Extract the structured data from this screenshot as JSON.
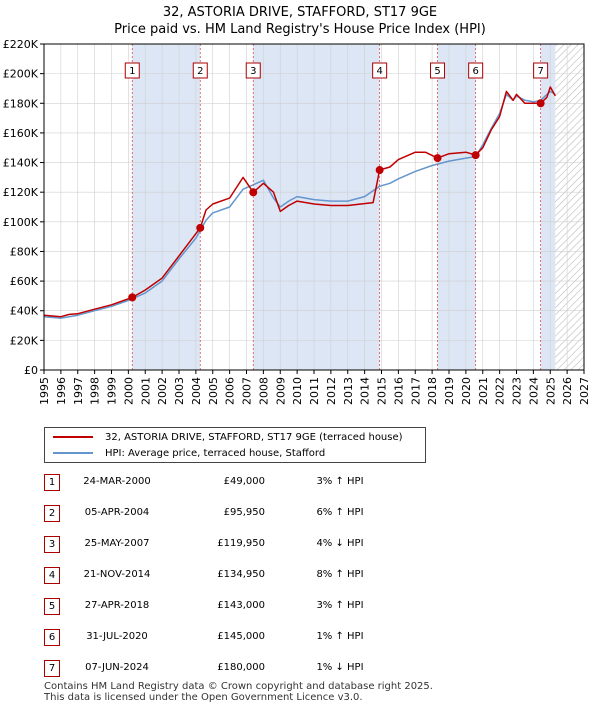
{
  "title": {
    "line1": "32, ASTORIA DRIVE, STAFFORD, ST17 9GE",
    "line2": "Price paid vs. HM Land Registry's House Price Index (HPI)"
  },
  "colors": {
    "property": "#c00000",
    "hpi": "#6495cd",
    "shade": "#dce6f5",
    "marker_line": "#e05050",
    "axis": "#000000",
    "grid": "#d0d0d0"
  },
  "legend": {
    "property_label": "32, ASTORIA DRIVE, STAFFORD, ST17 9GE (terraced house)",
    "hpi_label": "HPI: Average price, terraced house, Stafford"
  },
  "sales": [
    {
      "num": "1",
      "date": "24-MAR-2000",
      "price": "£49,000",
      "hpi": "3% ↑ HPI"
    },
    {
      "num": "2",
      "date": "05-APR-2004",
      "price": "£95,950",
      "hpi": "6% ↑ HPI"
    },
    {
      "num": "3",
      "date": "25-MAY-2007",
      "price": "£119,950",
      "hpi": "4% ↓ HPI"
    },
    {
      "num": "4",
      "date": "21-NOV-2014",
      "price": "£134,950",
      "hpi": "8% ↑ HPI"
    },
    {
      "num": "5",
      "date": "27-APR-2018",
      "price": "£143,000",
      "hpi": "3% ↑ HPI"
    },
    {
      "num": "6",
      "date": "31-JUL-2020",
      "price": "£145,000",
      "hpi": "1% ↑ HPI"
    },
    {
      "num": "7",
      "date": "07-JUN-2024",
      "price": "£180,000",
      "hpi": "1% ↓ HPI"
    }
  ],
  "footer": {
    "line1": "Contains HM Land Registry data © Crown copyright and database right 2025.",
    "line2": "This data is licensed under the Open Government Licence v3.0."
  },
  "chart_data": {
    "type": "line",
    "title": "Price paid vs. HM Land Registry's House Price Index (HPI)",
    "xlabel": "",
    "ylabel": "",
    "xlim": [
      1995,
      2027
    ],
    "ylim": [
      0,
      220000
    ],
    "x_ticks": [
      1995,
      1996,
      1997,
      1998,
      1999,
      2000,
      2001,
      2002,
      2003,
      2004,
      2005,
      2006,
      2007,
      2008,
      2009,
      2010,
      2011,
      2012,
      2013,
      2014,
      2015,
      2016,
      2017,
      2018,
      2019,
      2020,
      2021,
      2022,
      2023,
      2024,
      2025,
      2026,
      2027
    ],
    "y_ticks": [
      {
        "value": 0,
        "label": "£0"
      },
      {
        "value": 20000,
        "label": "£20K"
      },
      {
        "value": 40000,
        "label": "£40K"
      },
      {
        "value": 60000,
        "label": "£60K"
      },
      {
        "value": 80000,
        "label": "£80K"
      },
      {
        "value": 100000,
        "label": "£100K"
      },
      {
        "value": 120000,
        "label": "£120K"
      },
      {
        "value": 140000,
        "label": "£140K"
      },
      {
        "value": 160000,
        "label": "£160K"
      },
      {
        "value": 180000,
        "label": "£180K"
      },
      {
        "value": 200000,
        "label": "£200K"
      },
      {
        "value": 220000,
        "label": "£220K"
      }
    ],
    "shaded_ranges": [
      [
        2000.23,
        2004.26
      ],
      [
        2007.4,
        2014.89
      ],
      [
        2018.32,
        2020.58
      ],
      [
        2024.43,
        2025.3
      ]
    ],
    "forecast_start": 2025.3,
    "sale_markers": [
      {
        "num": "1",
        "x": 2000.23,
        "y": 49000
      },
      {
        "num": "2",
        "x": 2004.26,
        "y": 95950
      },
      {
        "num": "3",
        "x": 2007.4,
        "y": 119950
      },
      {
        "num": "4",
        "x": 2014.89,
        "y": 134950
      },
      {
        "num": "5",
        "x": 2018.32,
        "y": 143000
      },
      {
        "num": "6",
        "x": 2020.58,
        "y": 145000
      },
      {
        "num": "7",
        "x": 2024.43,
        "y": 180000
      }
    ],
    "series": [
      {
        "name": "32, ASTORIA DRIVE, STAFFORD, ST17 9GE (terraced house)",
        "color": "#c00000",
        "points": [
          [
            1995,
            37000
          ],
          [
            1996,
            36000
          ],
          [
            1996.5,
            37500
          ],
          [
            1997,
            38000
          ],
          [
            1998,
            41000
          ],
          [
            1999,
            44000
          ],
          [
            2000.23,
            49000
          ],
          [
            2001,
            54000
          ],
          [
            2002,
            62000
          ],
          [
            2003,
            77000
          ],
          [
            2004.26,
            95950
          ],
          [
            2004.6,
            108000
          ],
          [
            2005,
            112000
          ],
          [
            2006,
            116000
          ],
          [
            2006.8,
            130000
          ],
          [
            2007.4,
            119950
          ],
          [
            2008,
            126000
          ],
          [
            2008.6,
            120000
          ],
          [
            2009,
            107000
          ],
          [
            2009.5,
            111000
          ],
          [
            2010,
            114000
          ],
          [
            2011,
            112000
          ],
          [
            2012,
            111000
          ],
          [
            2013,
            111000
          ],
          [
            2014.5,
            113000
          ],
          [
            2014.89,
            134950
          ],
          [
            2015.5,
            137000
          ],
          [
            2016,
            142000
          ],
          [
            2017,
            147000
          ],
          [
            2017.6,
            147000
          ],
          [
            2018.32,
            143000
          ],
          [
            2019,
            146000
          ],
          [
            2020,
            147000
          ],
          [
            2020.58,
            145000
          ],
          [
            2021,
            150000
          ],
          [
            2021.5,
            162000
          ],
          [
            2022,
            171000
          ],
          [
            2022.4,
            188000
          ],
          [
            2022.8,
            182000
          ],
          [
            2023,
            186000
          ],
          [
            2023.5,
            180000
          ],
          [
            2024,
            180000
          ],
          [
            2024.43,
            180000
          ],
          [
            2024.8,
            184000
          ],
          [
            2025,
            191000
          ],
          [
            2025.3,
            185000
          ]
        ]
      },
      {
        "name": "HPI: Average price, terraced house, Stafford",
        "color": "#6495cd",
        "points": [
          [
            1995,
            36000
          ],
          [
            1996,
            35000
          ],
          [
            1997,
            37000
          ],
          [
            1998,
            40000
          ],
          [
            1999,
            43000
          ],
          [
            2000,
            47000
          ],
          [
            2001,
            52000
          ],
          [
            2002,
            60000
          ],
          [
            2003,
            75000
          ],
          [
            2004,
            89000
          ],
          [
            2004.6,
            101000
          ],
          [
            2005,
            106000
          ],
          [
            2006,
            110000
          ],
          [
            2006.8,
            122000
          ],
          [
            2007.4,
            125000
          ],
          [
            2008,
            128000
          ],
          [
            2008.6,
            116000
          ],
          [
            2009,
            110000
          ],
          [
            2009.5,
            114000
          ],
          [
            2010,
            117000
          ],
          [
            2011,
            115000
          ],
          [
            2012,
            114000
          ],
          [
            2013,
            114000
          ],
          [
            2014,
            117000
          ],
          [
            2014.89,
            124000
          ],
          [
            2015.5,
            126000
          ],
          [
            2016,
            129000
          ],
          [
            2017,
            134000
          ],
          [
            2018,
            138000
          ],
          [
            2019,
            141000
          ],
          [
            2020,
            143000
          ],
          [
            2020.58,
            144000
          ],
          [
            2021,
            152000
          ],
          [
            2021.5,
            163000
          ],
          [
            2022,
            173000
          ],
          [
            2022.4,
            186000
          ],
          [
            2022.8,
            182000
          ],
          [
            2023,
            185000
          ],
          [
            2023.5,
            182000
          ],
          [
            2024,
            181000
          ],
          [
            2024.43,
            182000
          ],
          [
            2024.8,
            186000
          ],
          [
            2025,
            188000
          ],
          [
            2025.3,
            186000
          ]
        ]
      }
    ]
  }
}
